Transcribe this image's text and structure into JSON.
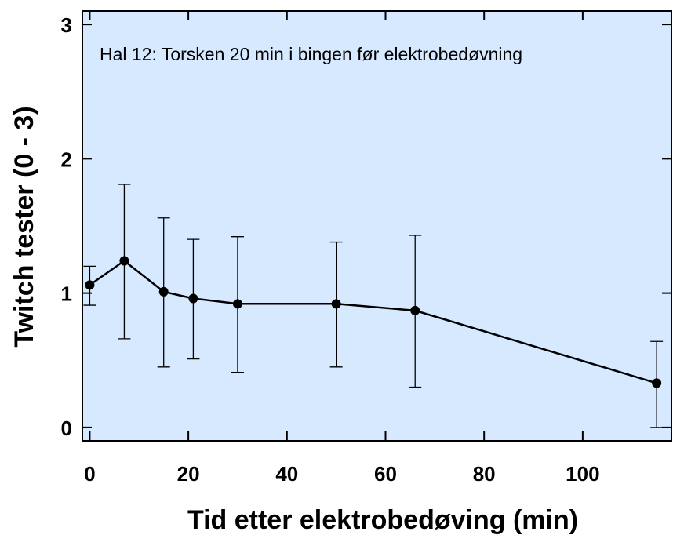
{
  "chart_data": {
    "type": "line",
    "title": "",
    "annotation": "Hal 12: Torsken 20 min i bingen før elektrobedøvning",
    "xlabel": "Tid etter elektrobedøving (min)",
    "ylabel": "Twitch tester (0 - 3)",
    "xlim": [
      -1.5,
      118
    ],
    "ylim": [
      -0.1,
      3.1
    ],
    "x_ticks": [
      0,
      20,
      40,
      60,
      80,
      100
    ],
    "y_ticks": [
      0,
      1,
      2,
      3
    ],
    "grid": false,
    "background_color": "#d6e9ff",
    "line_color": "#000000",
    "series": [
      {
        "x": [
          0,
          7,
          15,
          21,
          30,
          50,
          66,
          115
        ],
        "y": [
          1.06,
          1.24,
          1.01,
          0.96,
          0.92,
          0.92,
          0.87,
          0.33
        ],
        "err_low": [
          0.91,
          0.66,
          0.45,
          0.51,
          0.41,
          0.45,
          0.3,
          0.0
        ],
        "err_high": [
          1.2,
          1.81,
          1.56,
          1.4,
          1.42,
          1.38,
          1.43,
          0.64
        ]
      }
    ]
  }
}
